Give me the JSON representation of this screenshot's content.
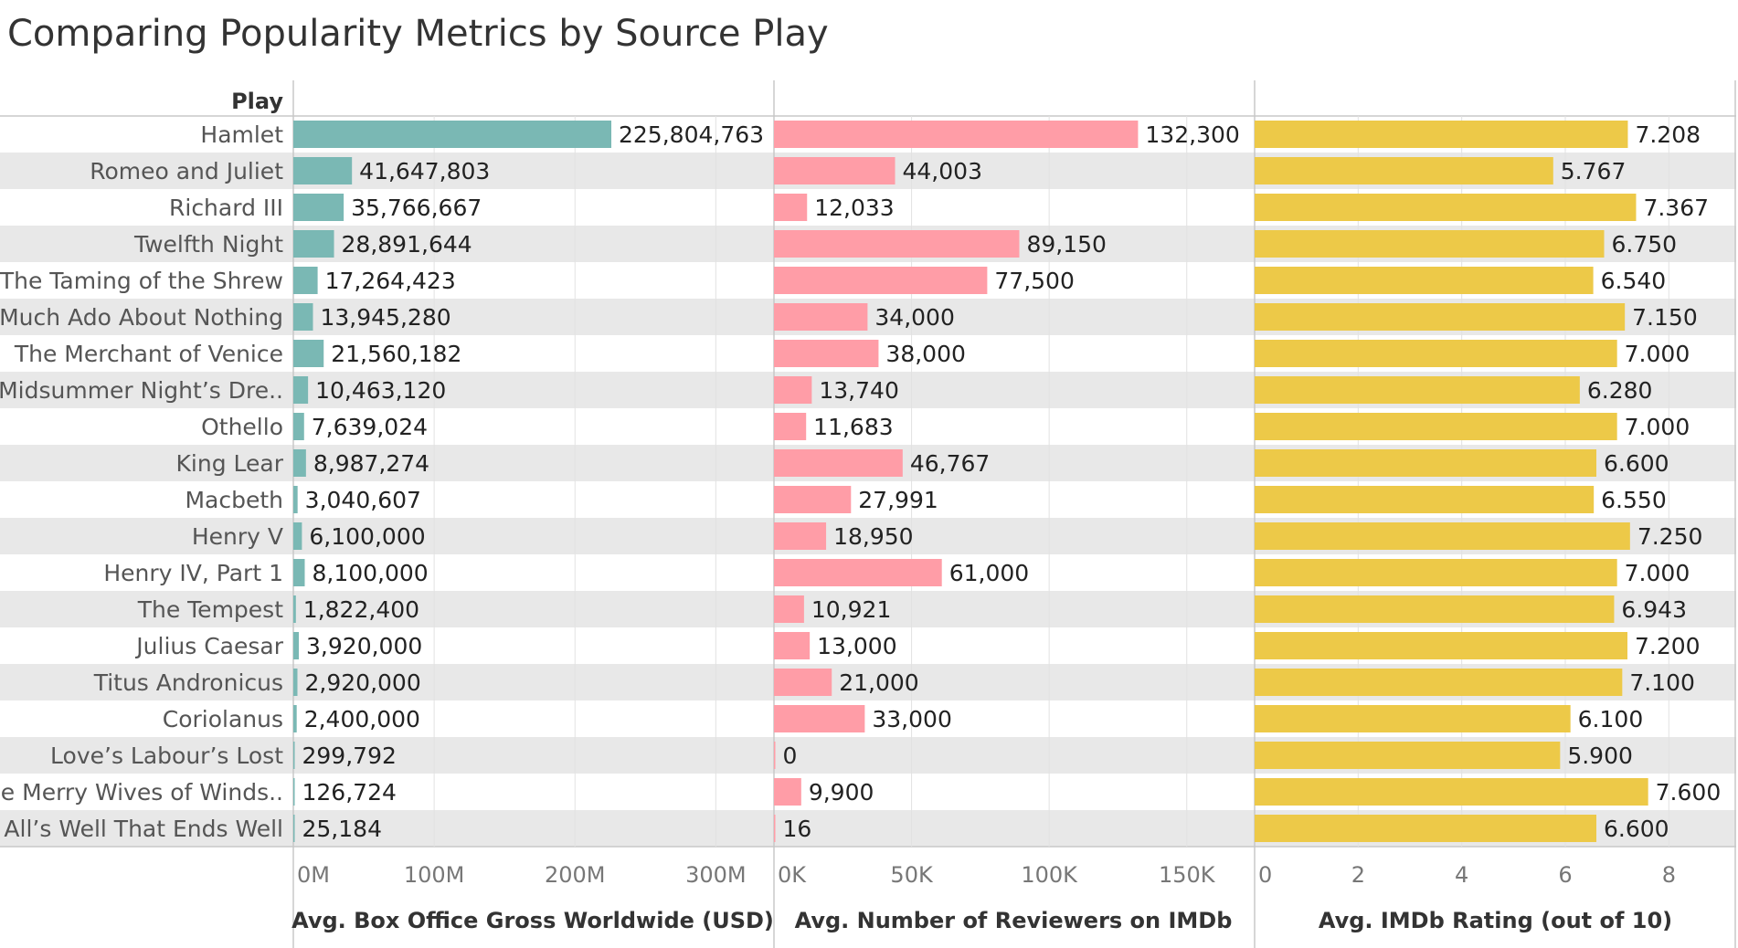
{
  "page": {
    "title": "Comparing Popularity Metrics by Source Play"
  },
  "chart_data": {
    "type": "bar",
    "title": "Comparing Popularity Metrics by Source Play",
    "row_header": "Play",
    "categories": [
      "Hamlet",
      "Romeo and Juliet",
      "Richard III",
      "Twelfth Night",
      "The Taming of the Shrew",
      "Much Ado About Nothing",
      "The Merchant of Venice",
      "A Midsummer Night’s Dre..",
      "Othello",
      "King Lear",
      "Macbeth",
      "Henry V",
      "Henry IV, Part 1",
      "The Tempest",
      "Julius Caesar",
      "Titus Andronicus",
      "Coriolanus",
      "Love’s Labour’s Lost",
      "The Merry Wives of Winds..",
      "All’s Well That Ends Well"
    ],
    "panels": [
      {
        "xlabel": "Avg. Box Office Gross Worldwide (USD)",
        "color": "#7ab8b4",
        "xlim": [
          0,
          340000000
        ],
        "ticks": [
          0,
          100000000,
          200000000,
          300000000
        ],
        "tick_labels": [
          "0M",
          "100M",
          "200M",
          "300M"
        ],
        "values": [
          225804763,
          41647803,
          35766667,
          28891644,
          17264423,
          13945280,
          21560182,
          10463120,
          7639024,
          8987274,
          3040607,
          6100000,
          8100000,
          1822400,
          3920000,
          2920000,
          2400000,
          299792,
          126724,
          25184
        ],
        "labels": [
          "225,804,763",
          "41,647,803",
          "35,766,667",
          "28,891,644",
          "17,264,423",
          "13,945,280",
          "21,560,182",
          "10,463,120",
          "7,639,024",
          "8,987,274",
          "3,040,607",
          "6,100,000",
          "8,100,000",
          "1,822,400",
          "3,920,000",
          "2,920,000",
          "2,400,000",
          "299,792",
          "126,724",
          "25,184"
        ]
      },
      {
        "xlabel": "Avg. Number of Reviewers on IMDb",
        "color": "#ff9da7",
        "xlim": [
          0,
          174000
        ],
        "ticks": [
          0,
          50000,
          100000,
          150000
        ],
        "tick_labels": [
          "0K",
          "50K",
          "100K",
          "150K"
        ],
        "values": [
          132300,
          44003,
          12033,
          89150,
          77500,
          34000,
          38000,
          13740,
          11683,
          46767,
          27991,
          18950,
          61000,
          10921,
          13000,
          21000,
          33000,
          0,
          9900,
          16
        ],
        "labels": [
          "132,300",
          "44,003",
          "12,033",
          "89,150",
          "77,500",
          "34,000",
          "38,000",
          "13,740",
          "11,683",
          "46,767",
          "27,991",
          "18,950",
          "61,000",
          "10,921",
          "13,000",
          "21,000",
          "33,000",
          "0",
          "9,900",
          "16"
        ]
      },
      {
        "xlabel": "Avg. IMDb Rating (out of 10)",
        "color": "#edc948",
        "xlim": [
          0,
          9.3
        ],
        "ticks": [
          0,
          2,
          4,
          6,
          8
        ],
        "tick_labels": [
          "0",
          "2",
          "4",
          "6",
          "8"
        ],
        "values": [
          7.208,
          5.767,
          7.367,
          6.75,
          6.54,
          7.15,
          7.0,
          6.28,
          7.0,
          6.6,
          6.55,
          7.25,
          7.0,
          6.943,
          7.2,
          7.1,
          6.1,
          5.9,
          7.6,
          6.6
        ],
        "labels": [
          "7.208",
          "5.767",
          "7.367",
          "6.750",
          "6.540",
          "7.150",
          "7.000",
          "6.280",
          "7.000",
          "6.600",
          "6.550",
          "7.250",
          "7.000",
          "6.943",
          "7.200",
          "7.100",
          "6.100",
          "5.900",
          "7.600",
          "6.600"
        ]
      }
    ]
  }
}
